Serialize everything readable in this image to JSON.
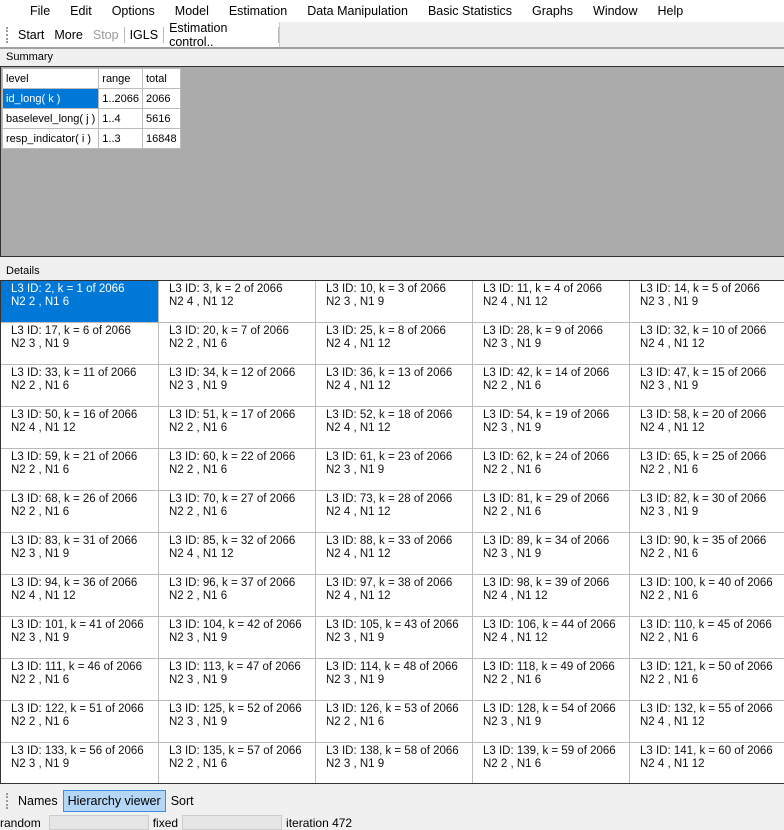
{
  "menu": [
    "File",
    "Edit",
    "Options",
    "Model",
    "Estimation",
    "Data Manipulation",
    "Basic Statistics",
    "Graphs",
    "Window",
    "Help"
  ],
  "toolbar": {
    "start": "Start",
    "more": "More",
    "stop": "Stop",
    "igls": "IGLS",
    "estimation_control": "Estimation control.."
  },
  "summary": {
    "label": "Summary",
    "headers": [
      "level",
      "range",
      "total"
    ],
    "rows": [
      [
        "id_long( k )",
        "1..2066",
        "2066"
      ],
      [
        "baselevel_long( j )",
        "1..4",
        "5616"
      ],
      [
        "resp_indicator( i )",
        "1..3",
        "16848"
      ]
    ]
  },
  "details": {
    "label": "Details",
    "cells": [
      [
        "L3 ID: 2, k = 1 of 2066",
        "N2 2 ,   N1 6"
      ],
      [
        "L3 ID: 3, k = 2 of 2066",
        "N2 4 ,   N1 12"
      ],
      [
        "L3 ID: 10, k = 3 of 2066",
        "N2 3 ,   N1 9"
      ],
      [
        "L3 ID: 11, k = 4 of 2066",
        "N2 4 ,   N1 12"
      ],
      [
        "L3 ID: 14, k = 5 of 2066",
        "N2 3 ,   N1 9"
      ],
      [
        "L3 ID: 17, k = 6 of 2066",
        "N2 3 ,   N1 9"
      ],
      [
        "L3 ID: 20, k = 7 of 2066",
        "N2 2 ,   N1 6"
      ],
      [
        "L3 ID: 25, k = 8 of 2066",
        "N2 4 ,   N1 12"
      ],
      [
        "L3 ID: 28, k = 9 of 2066",
        "N2 3 ,   N1 9"
      ],
      [
        "L3 ID: 32, k = 10 of 2066",
        "N2 4 ,   N1 12"
      ],
      [
        "L3 ID: 33, k = 11 of 2066",
        "N2 2 ,   N1 6"
      ],
      [
        "L3 ID: 34, k = 12 of 2066",
        "N2 3 ,   N1 9"
      ],
      [
        "L3 ID: 36, k = 13 of 2066",
        "N2 4 ,   N1 12"
      ],
      [
        "L3 ID: 42, k = 14 of 2066",
        "N2 2 ,   N1 6"
      ],
      [
        "L3 ID: 47, k = 15 of 2066",
        "N2 3 ,   N1 9"
      ],
      [
        "L3 ID: 50, k = 16 of 2066",
        "N2 4 ,   N1 12"
      ],
      [
        "L3 ID: 51, k = 17 of 2066",
        "N2 2 ,   N1 6"
      ],
      [
        "L3 ID: 52, k = 18 of 2066",
        "N2 4 ,   N1 12"
      ],
      [
        "L3 ID: 54, k = 19 of 2066",
        "N2 3 ,   N1 9"
      ],
      [
        "L3 ID: 58, k = 20 of 2066",
        "N2 4 ,   N1 12"
      ],
      [
        "L3 ID: 59, k = 21 of 2066",
        "N2 2 ,   N1 6"
      ],
      [
        "L3 ID: 60, k = 22 of 2066",
        "N2 2 ,   N1 6"
      ],
      [
        "L3 ID: 61, k = 23 of 2066",
        "N2 3 ,   N1 9"
      ],
      [
        "L3 ID: 62, k = 24 of 2066",
        "N2 2 ,   N1 6"
      ],
      [
        "L3 ID: 65, k = 25 of 2066",
        "N2 2 ,   N1 6"
      ],
      [
        "L3 ID: 68, k = 26 of 2066",
        "N2 2 ,   N1 6"
      ],
      [
        "L3 ID: 70, k = 27 of 2066",
        "N2 2 ,   N1 6"
      ],
      [
        "L3 ID: 73, k = 28 of 2066",
        "N2 4 ,   N1 12"
      ],
      [
        "L3 ID: 81, k = 29 of 2066",
        "N2 2 ,   N1 6"
      ],
      [
        "L3 ID: 82, k = 30 of 2066",
        "N2 3 ,   N1 9"
      ],
      [
        "L3 ID: 83, k = 31 of 2066",
        "N2 3 ,   N1 9"
      ],
      [
        "L3 ID: 85, k = 32 of 2066",
        "N2 4 ,   N1 12"
      ],
      [
        "L3 ID: 88, k = 33 of 2066",
        "N2 4 ,   N1 12"
      ],
      [
        "L3 ID: 89, k = 34 of 2066",
        "N2 3 ,   N1 9"
      ],
      [
        "L3 ID: 90, k = 35 of 2066",
        "N2 2 ,   N1 6"
      ],
      [
        "L3 ID: 94, k = 36 of 2066",
        "N2 4 ,   N1 12"
      ],
      [
        "L3 ID: 96, k = 37 of 2066",
        "N2 2 ,   N1 6"
      ],
      [
        "L3 ID: 97, k = 38 of 2066",
        "N2 4 ,   N1 12"
      ],
      [
        "L3 ID: 98, k = 39 of 2066",
        "N2 4 ,   N1 12"
      ],
      [
        "L3 ID: 100, k = 40 of 2066",
        "N2 2 ,   N1 6"
      ],
      [
        "L3 ID: 101, k = 41 of 2066",
        "N2 3 ,   N1 9"
      ],
      [
        "L3 ID: 104, k = 42 of 2066",
        "N2 3 ,   N1 9"
      ],
      [
        "L3 ID: 105, k = 43 of 2066",
        "N2 3 ,   N1 9"
      ],
      [
        "L3 ID: 106, k = 44 of 2066",
        "N2 4 ,   N1 12"
      ],
      [
        "L3 ID: 110, k = 45 of 2066",
        "N2 2 ,   N1 6"
      ],
      [
        "L3 ID: 111, k = 46 of 2066",
        "N2 2 ,   N1 6"
      ],
      [
        "L3 ID: 113, k = 47 of 2066",
        "N2 3 ,   N1 9"
      ],
      [
        "L3 ID: 114, k = 48 of 2066",
        "N2 3 ,   N1 9"
      ],
      [
        "L3 ID: 118, k = 49 of 2066",
        "N2 2 ,   N1 6"
      ],
      [
        "L3 ID: 121, k = 50 of 2066",
        "N2 2 ,   N1 6"
      ],
      [
        "L3 ID: 122, k = 51 of 2066",
        "N2 2 ,   N1 6"
      ],
      [
        "L3 ID: 125, k = 52 of 2066",
        "N2 3 ,   N1 9"
      ],
      [
        "L3 ID: 126, k = 53 of 2066",
        "N2 2 ,   N1 6"
      ],
      [
        "L3 ID: 128, k = 54 of 2066",
        "N2 3 ,   N1 9"
      ],
      [
        "L3 ID: 132, k = 55 of 2066",
        "N2 4 ,   N1 12"
      ],
      [
        "L3 ID: 133, k = 56 of 2066",
        "N2 3 ,   N1 9"
      ],
      [
        "L3 ID: 135, k = 57 of 2066",
        "N2 2 ,   N1 6"
      ],
      [
        "L3 ID: 138, k = 58 of 2066",
        "N2 3 ,   N1 9"
      ],
      [
        "L3 ID: 139, k = 59 of 2066",
        "N2 2 ,   N1 6"
      ],
      [
        "L3 ID: 141, k = 60 of 2066",
        "N2 4 ,   N1 12"
      ]
    ]
  },
  "tabs": [
    "Names",
    "Hierarchy viewer",
    "Sort"
  ],
  "active_tab": "Hierarchy viewer",
  "status": {
    "random": "random",
    "fixed": "fixed",
    "iteration": "iteration 472"
  },
  "colors": {
    "selection": "#0078d7",
    "summary_bg": "#ababab",
    "active_tab": "#b5d7f5"
  }
}
